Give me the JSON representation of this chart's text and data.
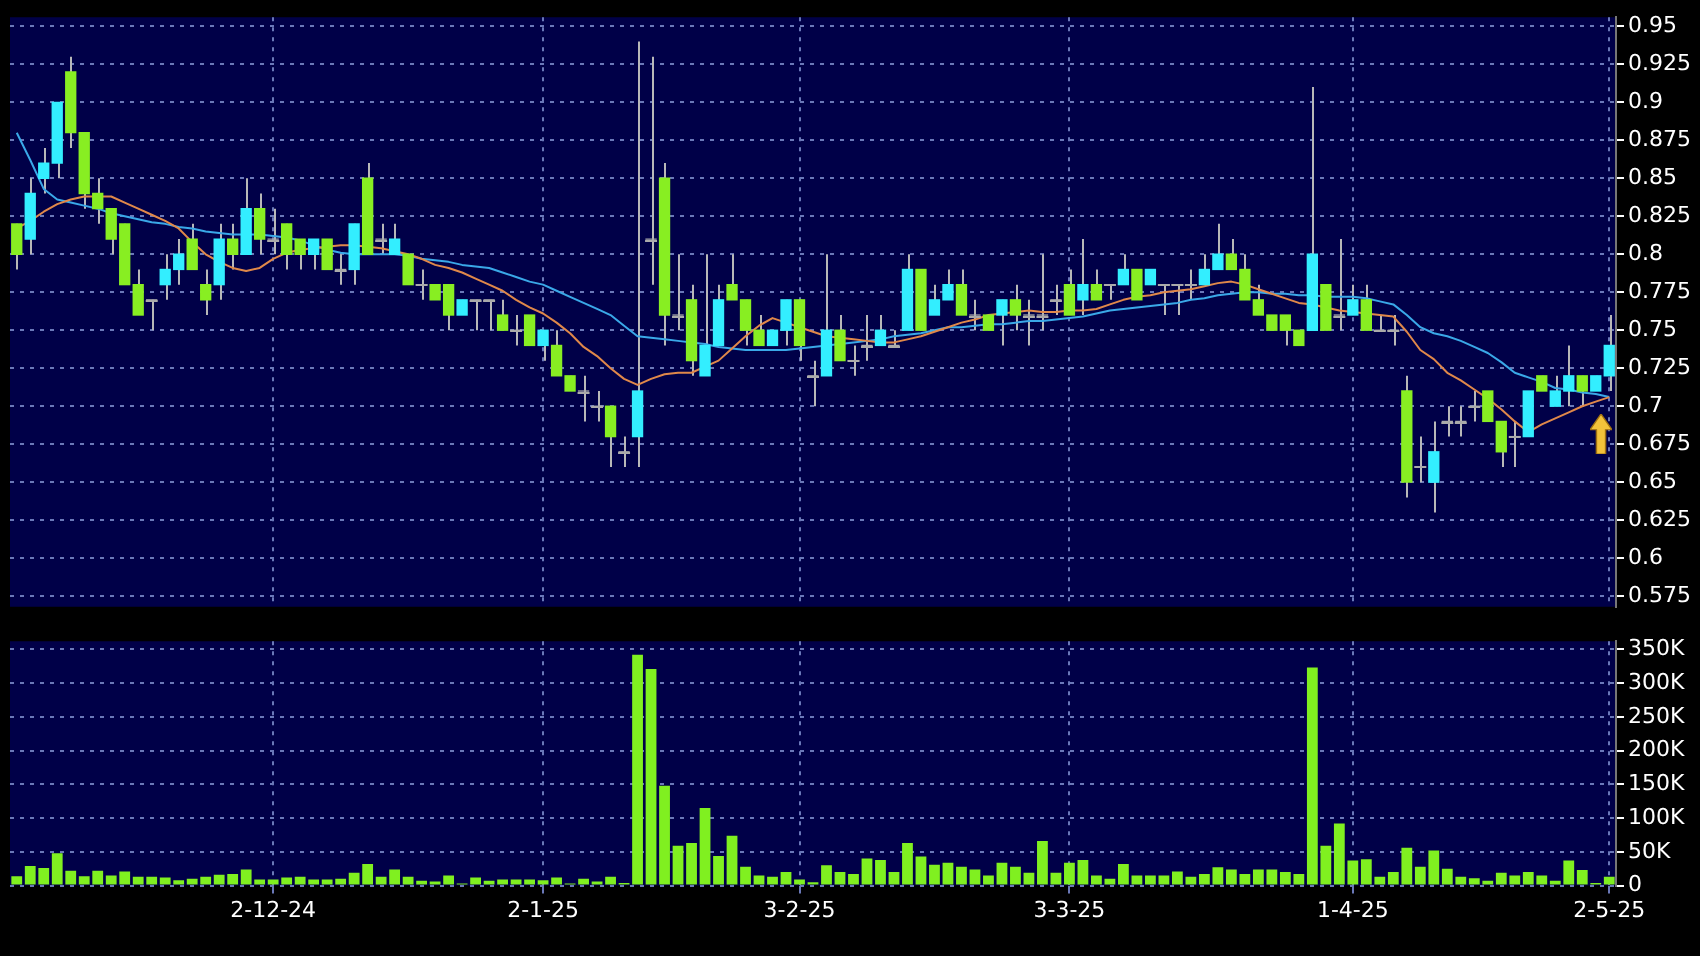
{
  "chart_data": [
    {
      "type": "candlestick",
      "categories": [
        null,
        null,
        null,
        null,
        null,
        null,
        null,
        null,
        null,
        null,
        null,
        null,
        null,
        null,
        null,
        null,
        null,
        null,
        null,
        null,
        null,
        null,
        null,
        null,
        null,
        null,
        null,
        null,
        null,
        null,
        null,
        null,
        null,
        null,
        null,
        null,
        null,
        null,
        null,
        null,
        null,
        null,
        null,
        null,
        null,
        null,
        null,
        null,
        null,
        null,
        null,
        null,
        null,
        null,
        null,
        null,
        null,
        null,
        null,
        null,
        null,
        null,
        null,
        null,
        null,
        null,
        null,
        null,
        null,
        null,
        null,
        null,
        null,
        null,
        null,
        null,
        null,
        null,
        null,
        null,
        null,
        null,
        null,
        null,
        null,
        null,
        null,
        null,
        null,
        null,
        null,
        null,
        null,
        null,
        null,
        null,
        null,
        null,
        null,
        null,
        null,
        null,
        null,
        null,
        null,
        null,
        null,
        null,
        null,
        null,
        null,
        null,
        null,
        null,
        null,
        null,
        null,
        null,
        null
      ],
      "ohlc": [
        [
          0.82,
          0.82,
          0.79,
          0.8
        ],
        [
          0.81,
          0.85,
          0.8,
          0.84
        ],
        [
          0.85,
          0.87,
          0.84,
          0.86
        ],
        [
          0.86,
          0.9,
          0.85,
          0.9
        ],
        [
          0.92,
          0.93,
          0.87,
          0.88
        ],
        [
          0.88,
          0.88,
          0.83,
          0.84
        ],
        [
          0.84,
          0.85,
          0.82,
          0.83
        ],
        [
          0.83,
          0.83,
          0.8,
          0.81
        ],
        [
          0.82,
          0.82,
          0.78,
          0.78
        ],
        [
          0.78,
          0.79,
          0.76,
          0.76
        ],
        [
          0.77,
          0.77,
          0.75,
          0.77
        ],
        [
          0.78,
          0.8,
          0.77,
          0.79
        ],
        [
          0.79,
          0.81,
          0.78,
          0.8
        ],
        [
          0.81,
          0.82,
          0.79,
          0.79
        ],
        [
          0.78,
          0.79,
          0.76,
          0.77
        ],
        [
          0.78,
          0.82,
          0.77,
          0.81
        ],
        [
          0.81,
          0.82,
          0.79,
          0.8
        ],
        [
          0.8,
          0.85,
          0.8,
          0.83
        ],
        [
          0.83,
          0.84,
          0.8,
          0.81
        ],
        [
          0.81,
          0.83,
          0.8,
          0.81
        ],
        [
          0.82,
          0.82,
          0.79,
          0.8
        ],
        [
          0.81,
          0.81,
          0.79,
          0.8
        ],
        [
          0.8,
          0.81,
          0.79,
          0.81
        ],
        [
          0.81,
          0.81,
          0.79,
          0.79
        ],
        [
          0.79,
          0.8,
          0.78,
          0.79
        ],
        [
          0.79,
          0.82,
          0.78,
          0.82
        ],
        [
          0.85,
          0.86,
          0.8,
          0.8
        ],
        [
          0.81,
          0.82,
          0.8,
          0.81
        ],
        [
          0.8,
          0.82,
          0.8,
          0.81
        ],
        [
          0.8,
          0.8,
          0.78,
          0.78
        ],
        [
          0.78,
          0.79,
          0.77,
          0.78
        ],
        [
          0.78,
          0.78,
          0.77,
          0.77
        ],
        [
          0.78,
          0.78,
          0.75,
          0.76
        ],
        [
          0.76,
          0.77,
          0.76,
          0.77
        ],
        [
          0.77,
          0.77,
          0.75,
          0.77
        ],
        [
          0.77,
          0.77,
          0.75,
          0.77
        ],
        [
          0.76,
          0.77,
          0.75,
          0.75
        ],
        [
          0.75,
          0.76,
          0.74,
          0.75
        ],
        [
          0.76,
          0.76,
          0.74,
          0.74
        ],
        [
          0.74,
          0.75,
          0.73,
          0.75
        ],
        [
          0.74,
          0.75,
          0.72,
          0.72
        ],
        [
          0.72,
          0.72,
          0.71,
          0.71
        ],
        [
          0.71,
          0.72,
          0.69,
          0.71
        ],
        [
          0.7,
          0.71,
          0.69,
          0.7
        ],
        [
          0.7,
          0.7,
          0.66,
          0.68
        ],
        [
          0.67,
          0.68,
          0.66,
          0.67
        ],
        [
          0.68,
          0.94,
          0.66,
          0.71
        ],
        [
          0.81,
          0.93,
          0.78,
          0.81
        ],
        [
          0.85,
          0.86,
          0.74,
          0.76
        ],
        [
          0.76,
          0.8,
          0.75,
          0.76
        ],
        [
          0.77,
          0.78,
          0.72,
          0.73
        ],
        [
          0.72,
          0.8,
          0.72,
          0.74
        ],
        [
          0.74,
          0.78,
          0.74,
          0.77
        ],
        [
          0.78,
          0.8,
          0.77,
          0.77
        ],
        [
          0.77,
          0.77,
          0.74,
          0.75
        ],
        [
          0.75,
          0.76,
          0.74,
          0.74
        ],
        [
          0.74,
          0.75,
          0.74,
          0.75
        ],
        [
          0.75,
          0.77,
          0.74,
          0.77
        ],
        [
          0.77,
          0.77,
          0.73,
          0.74
        ],
        [
          0.72,
          0.73,
          0.7,
          0.72
        ],
        [
          0.72,
          0.8,
          0.72,
          0.75
        ],
        [
          0.75,
          0.76,
          0.73,
          0.73
        ],
        [
          0.73,
          0.74,
          0.72,
          0.73
        ],
        [
          0.74,
          0.76,
          0.73,
          0.74
        ],
        [
          0.74,
          0.76,
          0.74,
          0.75
        ],
        [
          0.74,
          0.75,
          0.74,
          0.74
        ],
        [
          0.75,
          0.8,
          0.75,
          0.79
        ],
        [
          0.79,
          0.79,
          0.75,
          0.75
        ],
        [
          0.76,
          0.78,
          0.76,
          0.77
        ],
        [
          0.77,
          0.79,
          0.77,
          0.78
        ],
        [
          0.78,
          0.79,
          0.76,
          0.76
        ],
        [
          0.76,
          0.77,
          0.75,
          0.76
        ],
        [
          0.76,
          0.76,
          0.75,
          0.75
        ],
        [
          0.76,
          0.77,
          0.74,
          0.77
        ],
        [
          0.77,
          0.78,
          0.75,
          0.76
        ],
        [
          0.76,
          0.77,
          0.74,
          0.76
        ],
        [
          0.76,
          0.8,
          0.75,
          0.76
        ],
        [
          0.77,
          0.78,
          0.76,
          0.77
        ],
        [
          0.78,
          0.79,
          0.76,
          0.76
        ],
        [
          0.77,
          0.81,
          0.76,
          0.78
        ],
        [
          0.78,
          0.79,
          0.77,
          0.77
        ],
        [
          0.78,
          0.78,
          0.77,
          0.78
        ],
        [
          0.78,
          0.8,
          0.78,
          0.79
        ],
        [
          0.79,
          0.79,
          0.77,
          0.77
        ],
        [
          0.78,
          0.79,
          0.78,
          0.79
        ],
        [
          0.78,
          0.78,
          0.76,
          0.78
        ],
        [
          0.78,
          0.78,
          0.76,
          0.78
        ],
        [
          0.78,
          0.79,
          0.77,
          0.78
        ],
        [
          0.78,
          0.8,
          0.78,
          0.79
        ],
        [
          0.79,
          0.82,
          0.79,
          0.8
        ],
        [
          0.8,
          0.81,
          0.79,
          0.79
        ],
        [
          0.79,
          0.8,
          0.77,
          0.77
        ],
        [
          0.77,
          0.78,
          0.76,
          0.76
        ],
        [
          0.76,
          0.76,
          0.75,
          0.75
        ],
        [
          0.76,
          0.76,
          0.74,
          0.75
        ],
        [
          0.75,
          0.75,
          0.74,
          0.74
        ],
        [
          0.75,
          0.91,
          0.75,
          0.8
        ],
        [
          0.78,
          0.78,
          0.75,
          0.75
        ],
        [
          0.76,
          0.81,
          0.75,
          0.76
        ],
        [
          0.76,
          0.78,
          0.76,
          0.77
        ],
        [
          0.77,
          0.78,
          0.75,
          0.75
        ],
        [
          0.75,
          0.76,
          0.75,
          0.75
        ],
        [
          0.75,
          0.76,
          0.74,
          0.75
        ],
        [
          0.71,
          0.72,
          0.64,
          0.65
        ],
        [
          0.66,
          0.68,
          0.65,
          0.66
        ],
        [
          0.65,
          0.69,
          0.63,
          0.67
        ],
        [
          0.69,
          0.7,
          0.68,
          0.69
        ],
        [
          0.69,
          0.7,
          0.68,
          0.69
        ],
        [
          0.7,
          0.71,
          0.69,
          0.7
        ],
        [
          0.71,
          0.71,
          0.69,
          0.69
        ],
        [
          0.69,
          0.69,
          0.66,
          0.67
        ],
        [
          0.68,
          0.69,
          0.66,
          0.68
        ],
        [
          0.68,
          0.71,
          0.68,
          0.71
        ],
        [
          0.72,
          0.72,
          0.71,
          0.71
        ],
        [
          0.7,
          0.72,
          0.7,
          0.71
        ],
        [
          0.71,
          0.74,
          0.7,
          0.72
        ],
        [
          0.72,
          0.72,
          0.7,
          0.71
        ],
        [
          0.71,
          0.72,
          0.71,
          0.72
        ],
        [
          0.72,
          0.76,
          0.71,
          0.74
        ]
      ],
      "colors": [
        "#88ee22",
        "#33eeff",
        "#33eeff",
        "#33eeff",
        "#88ee22",
        "#88ee22",
        "#88ee22",
        "#88ee22",
        "#88ee22",
        "#88ee22",
        "#aaaaaa",
        "#33eeff",
        "#33eeff",
        "#88ee22",
        "#88ee22",
        "#33eeff",
        "#88ee22",
        "#33eeff",
        "#88ee22",
        "#aaaaaa",
        "#88ee22",
        "#88ee22",
        "#33eeff",
        "#88ee22",
        "#aaaaaa",
        "#33eeff",
        "#88ee22",
        "#aaaaaa",
        "#33eeff",
        "#88ee22",
        "#aaaaaa",
        "#88ee22",
        "#88ee22",
        "#33eeff",
        "#aaaaaa",
        "#aaaaaa",
        "#88ee22",
        "#aaaaaa",
        "#88ee22",
        "#33eeff",
        "#88ee22",
        "#88ee22",
        "#aaaaaa",
        "#aaaaaa",
        "#88ee22",
        "#aaaaaa",
        "#33eeff",
        "#aaaaaa",
        "#88ee22",
        "#aaaaaa",
        "#88ee22",
        "#33eeff",
        "#33eeff",
        "#88ee22",
        "#88ee22",
        "#88ee22",
        "#33eeff",
        "#33eeff",
        "#88ee22",
        "#aaaaaa",
        "#33eeff",
        "#88ee22",
        "#aaaaaa",
        "#aaaaaa",
        "#33eeff",
        "#aaaaaa",
        "#33eeff",
        "#88ee22",
        "#33eeff",
        "#33eeff",
        "#88ee22",
        "#aaaaaa",
        "#88ee22",
        "#33eeff",
        "#88ee22",
        "#aaaaaa",
        "#aaaaaa",
        "#aaaaaa",
        "#88ee22",
        "#33eeff",
        "#88ee22",
        "#aaaaaa",
        "#33eeff",
        "#88ee22",
        "#33eeff",
        "#aaaaaa",
        "#aaaaaa",
        "#aaaaaa",
        "#33eeff",
        "#33eeff",
        "#88ee22",
        "#88ee22",
        "#88ee22",
        "#88ee22",
        "#88ee22",
        "#88ee22",
        "#33eeff",
        "#88ee22",
        "#aaaaaa",
        "#33eeff",
        "#88ee22",
        "#aaaaaa",
        "#aaaaaa",
        "#88ee22",
        "#aaaaaa",
        "#33eeff",
        "#aaaaaa",
        "#aaaaaa",
        "#aaaaaa",
        "#88ee22",
        "#88ee22",
        "#aaaaaa",
        "#33eeff",
        "#88ee22",
        "#33eeff",
        "#33eeff",
        "#88ee22",
        "#33eeff",
        "#33eeff"
      ],
      "series": [
        {
          "type": "line",
          "color": "#e0884a",
          "values": [
            0.817,
            0.822,
            0.828,
            0.833,
            0.836,
            0.838,
            0.838,
            0.838,
            0.834,
            0.83,
            0.826,
            0.822,
            0.817,
            0.808,
            0.8,
            0.795,
            0.791,
            0.789,
            0.791,
            0.797,
            0.801,
            0.803,
            0.804,
            0.805,
            0.806,
            0.806,
            0.805,
            0.804,
            0.802,
            0.8,
            0.797,
            0.793,
            0.791,
            0.788,
            0.784,
            0.78,
            0.776,
            0.77,
            0.765,
            0.761,
            0.755,
            0.748,
            0.739,
            0.733,
            0.725,
            0.718,
            0.714,
            0.718,
            0.721,
            0.722,
            0.722,
            0.726,
            0.73,
            0.738,
            0.746,
            0.753,
            0.758,
            0.755,
            0.752,
            0.749,
            0.746,
            0.745,
            0.744,
            0.743,
            0.742,
            0.742,
            0.744,
            0.746,
            0.749,
            0.752,
            0.755,
            0.757,
            0.76,
            0.761,
            0.762,
            0.763,
            0.762,
            0.762,
            0.763,
            0.763,
            0.764,
            0.767,
            0.77,
            0.772,
            0.773,
            0.775,
            0.776,
            0.777,
            0.779,
            0.781,
            0.782,
            0.78,
            0.777,
            0.774,
            0.771,
            0.768,
            0.767,
            0.765,
            0.763,
            0.762,
            0.761,
            0.76,
            0.759,
            0.749,
            0.737,
            0.731,
            0.722,
            0.717,
            0.711,
            0.705,
            0.698,
            0.69,
            0.683,
            0.688,
            0.692,
            0.696,
            0.7,
            0.703,
            0.706
          ]
        },
        {
          "type": "line",
          "color": "#3aa8e8",
          "values": [
            0.88,
            0.862,
            0.843,
            0.836,
            0.834,
            0.832,
            0.83,
            0.827,
            0.825,
            0.823,
            0.821,
            0.82,
            0.818,
            0.817,
            0.815,
            0.814,
            0.813,
            0.813,
            0.813,
            0.812,
            0.811,
            0.809,
            0.806,
            0.803,
            0.801,
            0.8,
            0.8,
            0.8,
            0.8,
            0.799,
            0.797,
            0.796,
            0.795,
            0.793,
            0.792,
            0.791,
            0.788,
            0.785,
            0.782,
            0.78,
            0.776,
            0.772,
            0.768,
            0.764,
            0.76,
            0.753,
            0.746,
            0.745,
            0.744,
            0.743,
            0.742,
            0.741,
            0.739,
            0.738,
            0.737,
            0.737,
            0.737,
            0.737,
            0.738,
            0.739,
            0.74,
            0.741,
            0.742,
            0.743,
            0.744,
            0.746,
            0.747,
            0.748,
            0.75,
            0.752,
            0.752,
            0.753,
            0.754,
            0.754,
            0.755,
            0.756,
            0.756,
            0.757,
            0.758,
            0.759,
            0.761,
            0.763,
            0.764,
            0.765,
            0.766,
            0.767,
            0.768,
            0.77,
            0.771,
            0.773,
            0.774,
            0.775,
            0.775,
            0.774,
            0.774,
            0.773,
            0.773,
            0.772,
            0.772,
            0.772,
            0.771,
            0.769,
            0.767,
            0.76,
            0.752,
            0.748,
            0.746,
            0.743,
            0.739,
            0.735,
            0.729,
            0.722,
            0.719,
            0.716,
            0.712,
            0.711,
            0.709,
            0.708,
            0.706
          ]
        }
      ],
      "ylim": [
        0.568,
        0.956
      ],
      "yticks": [
        0.575,
        0.6,
        0.625,
        0.65,
        0.675,
        0.7,
        0.725,
        0.75,
        0.775,
        0.8,
        0.825,
        0.85,
        0.875,
        0.9,
        0.925,
        0.95
      ],
      "grid": true,
      "tick_labels": "y"
    },
    {
      "type": "bar",
      "categories": [
        null,
        null,
        null,
        null,
        null,
        null,
        null,
        null,
        null,
        null,
        null,
        null,
        null,
        null,
        null,
        null,
        null,
        null,
        null,
        "2-12-24",
        null,
        null,
        null,
        null,
        null,
        null,
        null,
        null,
        null,
        null,
        null,
        null,
        null,
        null,
        null,
        null,
        null,
        null,
        null,
        "2-1-25",
        null,
        null,
        null,
        null,
        null,
        null,
        null,
        null,
        null,
        null,
        null,
        null,
        null,
        null,
        null,
        null,
        null,
        null,
        "3-2-25",
        null,
        null,
        null,
        null,
        null,
        null,
        null,
        null,
        null,
        null,
        null,
        null,
        null,
        null,
        null,
        null,
        null,
        null,
        null,
        "3-3-25",
        null,
        null,
        null,
        null,
        null,
        null,
        null,
        null,
        null,
        null,
        null,
        null,
        null,
        null,
        null,
        null,
        null,
        null,
        null,
        null,
        "1-4-25",
        null,
        null,
        null,
        null,
        null,
        null,
        null,
        null,
        null,
        null,
        null,
        null,
        null,
        null,
        null,
        null,
        null,
        null,
        "2-5-25"
      ],
      "values": [
        14000,
        29000,
        26000,
        48000,
        22000,
        14000,
        22000,
        15000,
        21000,
        13000,
        13000,
        12000,
        8000,
        10000,
        13000,
        16000,
        17000,
        24000,
        9000,
        9000,
        12000,
        13000,
        9000,
        9000,
        10000,
        19000,
        32000,
        13000,
        24000,
        13000,
        7000,
        6000,
        15000,
        3000,
        12000,
        7000,
        9000,
        9000,
        9000,
        8000,
        12000,
        3000,
        10000,
        6000,
        13000,
        4000,
        342000,
        321000,
        148000,
        59000,
        63000,
        115000,
        44000,
        74000,
        28000,
        15000,
        13000,
        20000,
        9000,
        5000,
        30000,
        20000,
        17000,
        40000,
        38000,
        20000,
        63000,
        43000,
        31000,
        34000,
        28000,
        24000,
        15000,
        34000,
        28000,
        19000,
        66000,
        19000,
        34000,
        38000,
        15000,
        10000,
        32000,
        15000,
        15000,
        15000,
        21000,
        13000,
        17000,
        27000,
        24000,
        17000,
        24000,
        24000,
        20000,
        17000,
        323000,
        59000,
        92000,
        37000,
        39000,
        13000,
        20000,
        56000,
        28000,
        52000,
        25000,
        13000,
        11000,
        7000,
        19000,
        15000,
        20000,
        15000,
        7000,
        37000,
        23000,
        4000,
        13000
      ],
      "color": "#80f020",
      "ylim": [
        0,
        362000
      ],
      "yticks": [
        0,
        {
          "value": 50000,
          "label": "50K"
        },
        {
          "value": 100000,
          "label": "100K"
        },
        {
          "value": 150000,
          "label": "150K"
        },
        {
          "value": 200000,
          "label": "200K"
        },
        {
          "value": 250000,
          "label": "250K"
        },
        {
          "value": 300000,
          "label": "300K"
        },
        {
          "value": 350000,
          "label": "350K"
        }
      ],
      "grid": true
    }
  ]
}
